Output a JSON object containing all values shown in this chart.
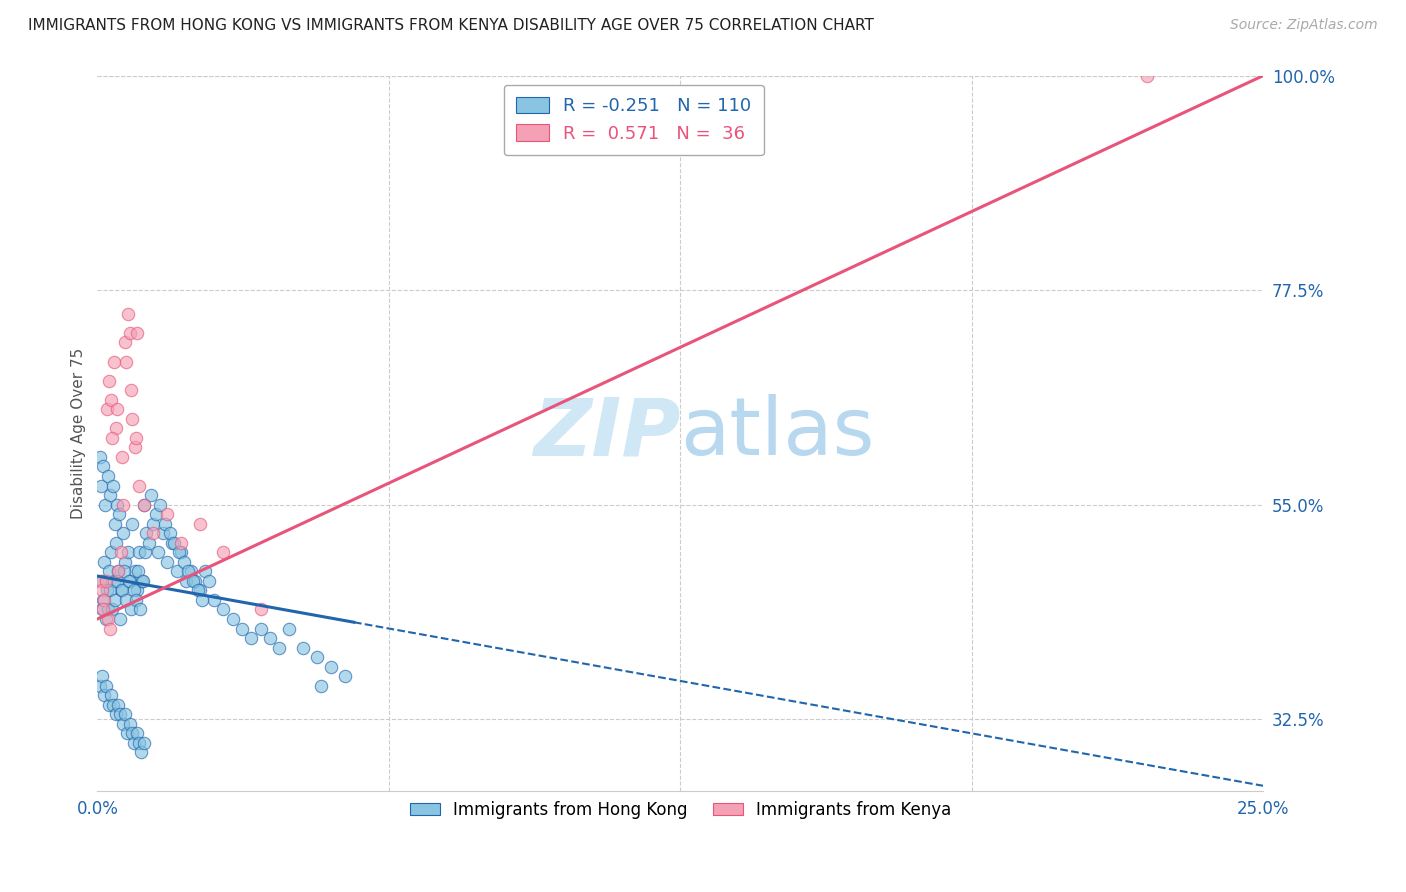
{
  "title": "IMMIGRANTS FROM HONG KONG VS IMMIGRANTS FROM KENYA DISABILITY AGE OVER 75 CORRELATION CHART",
  "source": "Source: ZipAtlas.com",
  "ylabel": "Disability Age Over 75",
  "hk_label": "Immigrants from Hong Kong",
  "ke_label": "Immigrants from Kenya",
  "hk_R": -0.251,
  "hk_N": 110,
  "ke_R": 0.571,
  "ke_N": 36,
  "hk_color": "#89c4e1",
  "ke_color": "#f4a0b5",
  "hk_trend_color": "#2166ac",
  "ke_trend_color": "#e8547a",
  "watermark_color": "#d0e8f5",
  "bg_color": "#ffffff",
  "xmin": 0.0,
  "xmax": 25.0,
  "ymin": 25.0,
  "ymax": 100.0,
  "right_yticks": [
    32.5,
    55.0,
    77.5,
    100.0
  ],
  "right_ytick_labels": [
    "32.5%",
    "55.0%",
    "77.5%",
    "100.0%"
  ],
  "hk_solid_end": 5.5,
  "hk_trend_x0": 0.0,
  "hk_trend_y0": 47.5,
  "hk_trend_x1": 25.0,
  "hk_trend_y1": 25.5,
  "ke_trend_x0": 0.0,
  "ke_trend_y0": 43.0,
  "ke_trend_x1": 25.0,
  "ke_trend_y1": 100.0,
  "hk_x": [
    0.1,
    0.15,
    0.2,
    0.25,
    0.3,
    0.35,
    0.4,
    0.45,
    0.5,
    0.55,
    0.6,
    0.65,
    0.7,
    0.75,
    0.8,
    0.85,
    0.9,
    0.95,
    1.0,
    1.05,
    0.1,
    0.12,
    0.18,
    0.22,
    0.28,
    0.32,
    0.38,
    0.42,
    0.48,
    0.52,
    0.58,
    0.62,
    0.68,
    0.72,
    0.78,
    0.82,
    0.88,
    0.92,
    0.98,
    1.02,
    0.05,
    0.08,
    0.13,
    0.17,
    0.23,
    0.27,
    0.33,
    0.37,
    0.43,
    0.47,
    1.1,
    1.2,
    1.3,
    1.4,
    1.5,
    1.6,
    1.7,
    1.8,
    1.9,
    2.0,
    2.1,
    2.2,
    2.3,
    2.4,
    2.5,
    2.7,
    2.9,
    3.1,
    3.3,
    3.5,
    3.7,
    3.9,
    4.1,
    4.4,
    4.7,
    5.0,
    5.3,
    0.06,
    0.09,
    0.14,
    0.19,
    0.24,
    0.29,
    0.34,
    0.39,
    0.44,
    0.49,
    0.54,
    0.59,
    0.64,
    0.69,
    0.74,
    0.79,
    0.84,
    0.89,
    0.94,
    0.99,
    1.15,
    1.25,
    1.35,
    1.45,
    1.55,
    1.65,
    1.75,
    1.85,
    1.95,
    2.05,
    2.15,
    2.25,
    4.8
  ],
  "hk_y": [
    47,
    49,
    46,
    48,
    50,
    47,
    51,
    48,
    46,
    52,
    49,
    50,
    47,
    53,
    48,
    46,
    50,
    47,
    55,
    52,
    44,
    45,
    43,
    44,
    46,
    44,
    45,
    47,
    43,
    46,
    48,
    45,
    47,
    44,
    46,
    45,
    48,
    44,
    47,
    50,
    60,
    57,
    59,
    55,
    58,
    56,
    57,
    53,
    55,
    54,
    51,
    53,
    50,
    52,
    49,
    51,
    48,
    50,
    47,
    48,
    47,
    46,
    48,
    47,
    45,
    44,
    43,
    42,
    41,
    42,
    41,
    40,
    42,
    40,
    39,
    38,
    37,
    36,
    37,
    35,
    36,
    34,
    35,
    34,
    33,
    34,
    33,
    32,
    33,
    31,
    32,
    31,
    30,
    31,
    30,
    29,
    30,
    56,
    54,
    55,
    53,
    52,
    51,
    50,
    49,
    48,
    47,
    46,
    45,
    36
  ],
  "ke_x": [
    0.05,
    0.1,
    0.15,
    0.2,
    0.25,
    0.3,
    0.35,
    0.4,
    0.45,
    0.5,
    0.55,
    0.6,
    0.65,
    0.7,
    0.75,
    0.8,
    0.85,
    0.9,
    0.12,
    0.22,
    0.32,
    0.42,
    0.52,
    0.62,
    0.72,
    0.82,
    1.0,
    1.2,
    1.5,
    1.8,
    2.2,
    2.7,
    3.5,
    0.18,
    0.28,
    22.5
  ],
  "ke_y": [
    47,
    46,
    45,
    65,
    68,
    66,
    70,
    63,
    48,
    50,
    55,
    72,
    75,
    73,
    64,
    61,
    73,
    57,
    44,
    43,
    62,
    65,
    60,
    70,
    67,
    62,
    55,
    52,
    54,
    51,
    53,
    50,
    44,
    47,
    42,
    100
  ]
}
